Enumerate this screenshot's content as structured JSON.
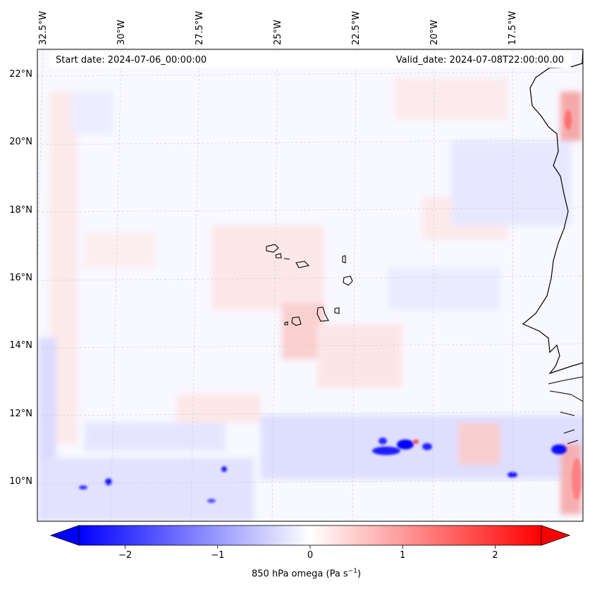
{
  "map": {
    "type": "filled-contour-map",
    "variable_title": "850 hPa omega (Pa s",
    "variable_unit_exponent": "−1",
    "variable_title_close": ")",
    "start_date_label": "Start date: 2024-07-06_00:00:00",
    "valid_date_label": "Valid_date: 2024-07-08T22:00:00.00",
    "longitude_labels": [
      "32.5°W",
      "30°W",
      "27.5°W",
      "25°W",
      "22.5°W",
      "20°W",
      "17.5°W"
    ],
    "latitude_labels": [
      "22°N",
      "20°N",
      "18°N",
      "16°N",
      "14°N",
      "12°N",
      "10°N"
    ],
    "colors": {
      "negative": "#0000ff",
      "positive": "#ff0000",
      "neutral": "#ffffff"
    }
  },
  "chart_data": {
    "type": "heatmap",
    "colorbar": {
      "min": -2.5,
      "max": 2.5,
      "ticks": [
        -2,
        -1,
        0,
        1,
        2
      ],
      "tick_labels": [
        "−2",
        "−1",
        "0",
        "1",
        "2"
      ],
      "colormap": "bwr",
      "extend": "both",
      "orientation": "horizontal"
    },
    "lon_range": [
      -33,
      -15.5
    ],
    "lat_range": [
      9,
      22.6
    ]
  }
}
